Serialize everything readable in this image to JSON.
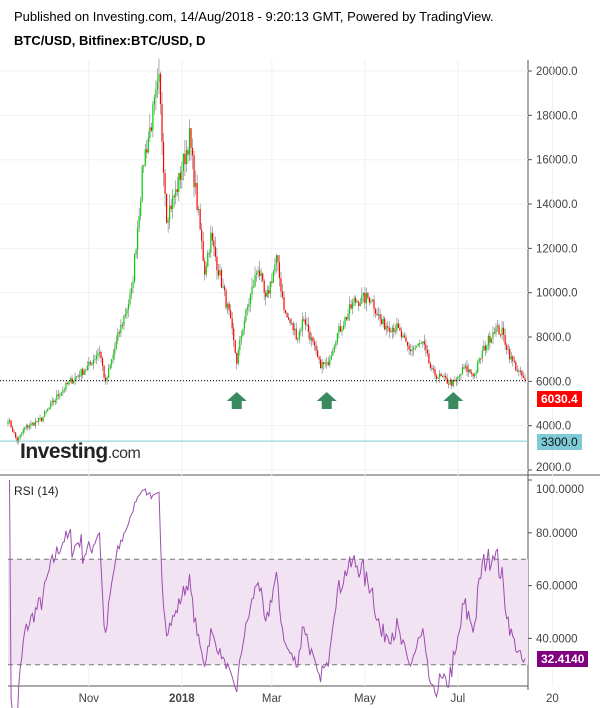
{
  "header": {
    "published": "Published on Investing.com, 14/Aug/2018 - 9:20:13 GMT, Powered by TradingView.",
    "symbol": "BTC/USD, Bitfinex:BTC/USD, D"
  },
  "logo": {
    "main": "Investing",
    "suffix": ".com"
  },
  "chart_data": [
    {
      "type": "candlestick",
      "title": "BTC/USD, Bitfinex:BTC/USD, D",
      "ylim": [
        2000,
        20500
      ],
      "yticks": [
        "20000.0",
        "18000.0",
        "16000.0",
        "14000.0",
        "12000.0",
        "10000.0",
        "8000.0",
        "6000.0",
        "4000.0",
        "2000.0"
      ],
      "ytick_values": [
        20000,
        18000,
        16000,
        14000,
        12000,
        10000,
        8000,
        6000,
        4000,
        2000
      ],
      "xticks": [
        "Nov",
        "2018",
        "Mar",
        "May",
        "Jul",
        "20"
      ],
      "xtick_dates": [
        "2017-11-01",
        "2018-01-01",
        "2018-03-01",
        "2018-05-01",
        "2018-07-01",
        "2018-09-01"
      ],
      "x_start": "2017-09-09",
      "x_end": "2018-08-14",
      "close_anchors": [
        [
          "2017-09-09",
          4300
        ],
        [
          "2017-09-15",
          3300
        ],
        [
          "2017-09-20",
          3900
        ],
        [
          "2017-10-01",
          4300
        ],
        [
          "2017-10-12",
          5400
        ],
        [
          "2017-10-20",
          6000
        ],
        [
          "2017-11-01",
          6700
        ],
        [
          "2017-11-08",
          7400
        ],
        [
          "2017-11-12",
          5900
        ],
        [
          "2017-11-20",
          8000
        ],
        [
          "2017-11-29",
          10000
        ],
        [
          "2017-12-07",
          16000
        ],
        [
          "2017-12-17",
          19400
        ],
        [
          "2017-12-22",
          13500
        ],
        [
          "2017-12-28",
          14500
        ],
        [
          "2018-01-06",
          17000
        ],
        [
          "2018-01-16",
          11000
        ],
        [
          "2018-01-20",
          12500
        ],
        [
          "2018-02-01",
          9000
        ],
        [
          "2018-02-06",
          6900
        ],
        [
          "2018-02-10",
          8500
        ],
        [
          "2018-02-20",
          11200
        ],
        [
          "2018-02-25",
          9600
        ],
        [
          "2018-03-04",
          11500
        ],
        [
          "2018-03-10",
          9000
        ],
        [
          "2018-03-18",
          8000
        ],
        [
          "2018-03-22",
          8900
        ],
        [
          "2018-04-01",
          6800
        ],
        [
          "2018-04-06",
          6700
        ],
        [
          "2018-04-12",
          8000
        ],
        [
          "2018-04-24",
          9600
        ],
        [
          "2018-05-05",
          9800
        ],
        [
          "2018-05-12",
          8600
        ],
        [
          "2018-05-22",
          8400
        ],
        [
          "2018-05-30",
          7400
        ],
        [
          "2018-06-08",
          7700
        ],
        [
          "2018-06-14",
          6400
        ],
        [
          "2018-06-24",
          6000
        ],
        [
          "2018-06-29",
          5900
        ],
        [
          "2018-07-05",
          6600
        ],
        [
          "2018-07-12",
          6300
        ],
        [
          "2018-07-17",
          7300
        ],
        [
          "2018-07-25",
          8400
        ],
        [
          "2018-07-30",
          8200
        ],
        [
          "2018-08-05",
          7000
        ],
        [
          "2018-08-10",
          6400
        ],
        [
          "2018-08-14",
          6030.4
        ]
      ],
      "last_price": "6030.4",
      "support_level": "3300.0",
      "support_value": 3300,
      "last_value": 6030.4,
      "up_color": "#00d000",
      "down_color": "#ff0000",
      "arrows": [
        "2018-02-06",
        "2018-04-06",
        "2018-06-28"
      ],
      "arrow_color": "#3a8a5f"
    },
    {
      "type": "line",
      "title": "RSI (14)",
      "ylim": [
        25,
        100
      ],
      "yticks": [
        "100.0000",
        "80.0000",
        "60.0000",
        "40.0000"
      ],
      "ytick_values": [
        100,
        80,
        60,
        40
      ],
      "bands": [
        30,
        70
      ],
      "last_value_label": "32.4140",
      "last_value": 32.414,
      "line_color": "#9c4fb0",
      "band_fill": "#f1e3f1"
    }
  ]
}
